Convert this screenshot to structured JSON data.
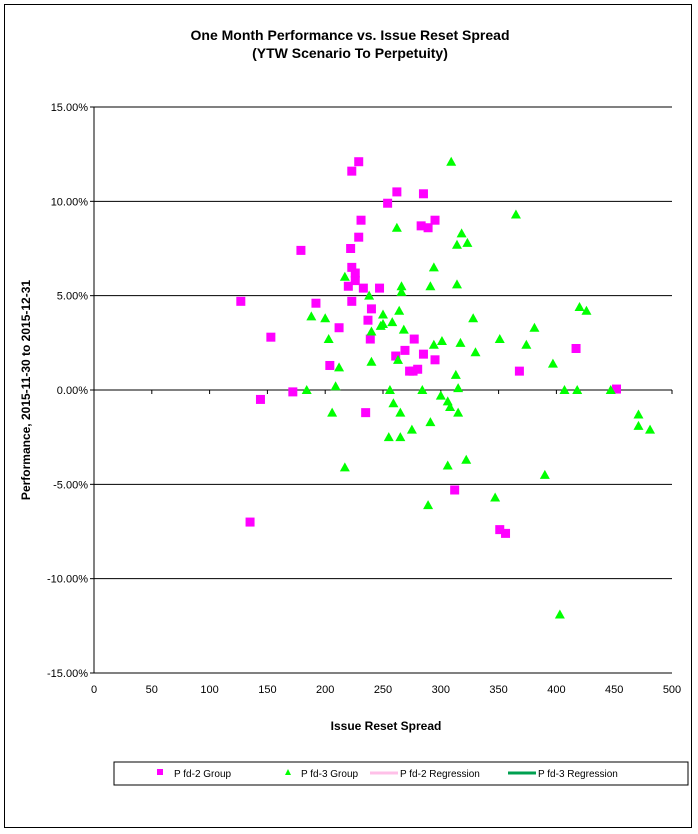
{
  "chart_data": {
    "type": "scatter",
    "title": "One Month Performance vs. Issue Reset Spread",
    "subtitle": "(YTW Scenario To Perpetuity)",
    "xlabel": "Issue  Reset  Spread",
    "ylabel": "Performance, 2015-11-30  to 2015-12-31",
    "xlim": [
      0,
      500
    ],
    "ylim": [
      -15,
      15
    ],
    "x_ticks": [
      "0",
      "50",
      "100",
      "150",
      "200",
      "250",
      "300",
      "350",
      "400",
      "450",
      "500"
    ],
    "y_ticks": [
      "15.00%",
      "10.00%",
      "5.00%",
      "0.00%",
      "-5.00%",
      "-10.00%",
      "-15.00%"
    ],
    "grid": "horizontal",
    "legend_position": "bottom",
    "legend": [
      "P fd-2 Group",
      "P fd-3 Group",
      "P fd-2 Regression",
      "P fd-3 Regression"
    ],
    "colors": {
      "pfd2": "#ff00ff",
      "pfd3": "#00ff00",
      "pfd2_reg": "#ffc0e8",
      "pfd3_reg": "#00a050"
    },
    "series": [
      {
        "name": "P fd-2 Group",
        "marker": "square",
        "points": [
          [
            229,
            12.1
          ],
          [
            223,
            11.6
          ],
          [
            262,
            10.5
          ],
          [
            285,
            10.4
          ],
          [
            254,
            9.9
          ],
          [
            231,
            9.0
          ],
          [
            295,
            9.0
          ],
          [
            283,
            8.7
          ],
          [
            289,
            8.6
          ],
          [
            229,
            8.1
          ],
          [
            179,
            7.4
          ],
          [
            222,
            7.5
          ],
          [
            223,
            6.5
          ],
          [
            226,
            6.2
          ],
          [
            226,
            5.8
          ],
          [
            220,
            5.5
          ],
          [
            233,
            5.4
          ],
          [
            247,
            5.4
          ],
          [
            127,
            4.7
          ],
          [
            223,
            4.7
          ],
          [
            192,
            4.6
          ],
          [
            240,
            4.3
          ],
          [
            237,
            3.7
          ],
          [
            212,
            3.3
          ],
          [
            153,
            2.8
          ],
          [
            239,
            2.7
          ],
          [
            277,
            2.7
          ],
          [
            269,
            2.1
          ],
          [
            417,
            2.2
          ],
          [
            261,
            1.8
          ],
          [
            295,
            1.6
          ],
          [
            285,
            1.9
          ],
          [
            204,
            1.3
          ],
          [
            280,
            1.1
          ],
          [
            273,
            1.0
          ],
          [
            276,
            1.0
          ],
          [
            368,
            1.0
          ],
          [
            452,
            0.05
          ],
          [
            172,
            -0.1
          ],
          [
            144,
            -0.5
          ],
          [
            235,
            -1.2
          ],
          [
            312,
            -5.3
          ],
          [
            135,
            -7.0
          ],
          [
            351,
            -7.4
          ],
          [
            356,
            -7.6
          ]
        ]
      },
      {
        "name": "P fd-3 Group",
        "marker": "triangle",
        "points": [
          [
            309,
            12.1
          ],
          [
            365,
            9.3
          ],
          [
            262,
            8.6
          ],
          [
            318,
            8.3
          ],
          [
            314,
            7.7
          ],
          [
            323,
            7.8
          ],
          [
            294,
            6.5
          ],
          [
            217,
            6.0
          ],
          [
            266,
            5.5
          ],
          [
            291,
            5.5
          ],
          [
            314,
            5.6
          ],
          [
            238,
            5.0
          ],
          [
            266,
            5.2
          ],
          [
            188,
            3.9
          ],
          [
            200,
            3.8
          ],
          [
            250,
            4.0
          ],
          [
            264,
            4.2
          ],
          [
            328,
            3.8
          ],
          [
            420,
            4.4
          ],
          [
            426,
            4.2
          ],
          [
            381,
            3.3
          ],
          [
            240,
            3.1
          ],
          [
            250,
            3.5
          ],
          [
            248,
            3.4
          ],
          [
            268,
            3.2
          ],
          [
            258,
            3.6
          ],
          [
            203,
            2.7
          ],
          [
            351,
            2.7
          ],
          [
            317,
            2.5
          ],
          [
            294,
            2.4
          ],
          [
            374,
            2.4
          ],
          [
            301,
            2.6
          ],
          [
            330,
            2.0
          ],
          [
            240,
            1.5
          ],
          [
            263,
            1.6
          ],
          [
            212,
            1.2
          ],
          [
            313,
            0.8
          ],
          [
            397,
            1.4
          ],
          [
            209,
            0.2
          ],
          [
            315,
            0.1
          ],
          [
            184,
            0
          ],
          [
            256,
            0
          ],
          [
            284,
            0
          ],
          [
            407,
            0
          ],
          [
            418,
            0
          ],
          [
            447,
            0
          ],
          [
            259,
            -0.7
          ],
          [
            265,
            -1.2
          ],
          [
            300,
            -0.3
          ],
          [
            306,
            -0.6
          ],
          [
            308,
            -0.9
          ],
          [
            206,
            -1.2
          ],
          [
            315,
            -1.2
          ],
          [
            291,
            -1.7
          ],
          [
            275,
            -2.1
          ],
          [
            471,
            -1.3
          ],
          [
            471,
            -1.9
          ],
          [
            481,
            -2.1
          ],
          [
            255,
            -2.5
          ],
          [
            265,
            -2.5
          ],
          [
            306,
            -4.0
          ],
          [
            322,
            -3.7
          ],
          [
            217,
            -4.1
          ],
          [
            390,
            -4.5
          ],
          [
            347,
            -5.7
          ],
          [
            289,
            -6.1
          ],
          [
            403,
            -11.9
          ]
        ]
      }
    ]
  }
}
